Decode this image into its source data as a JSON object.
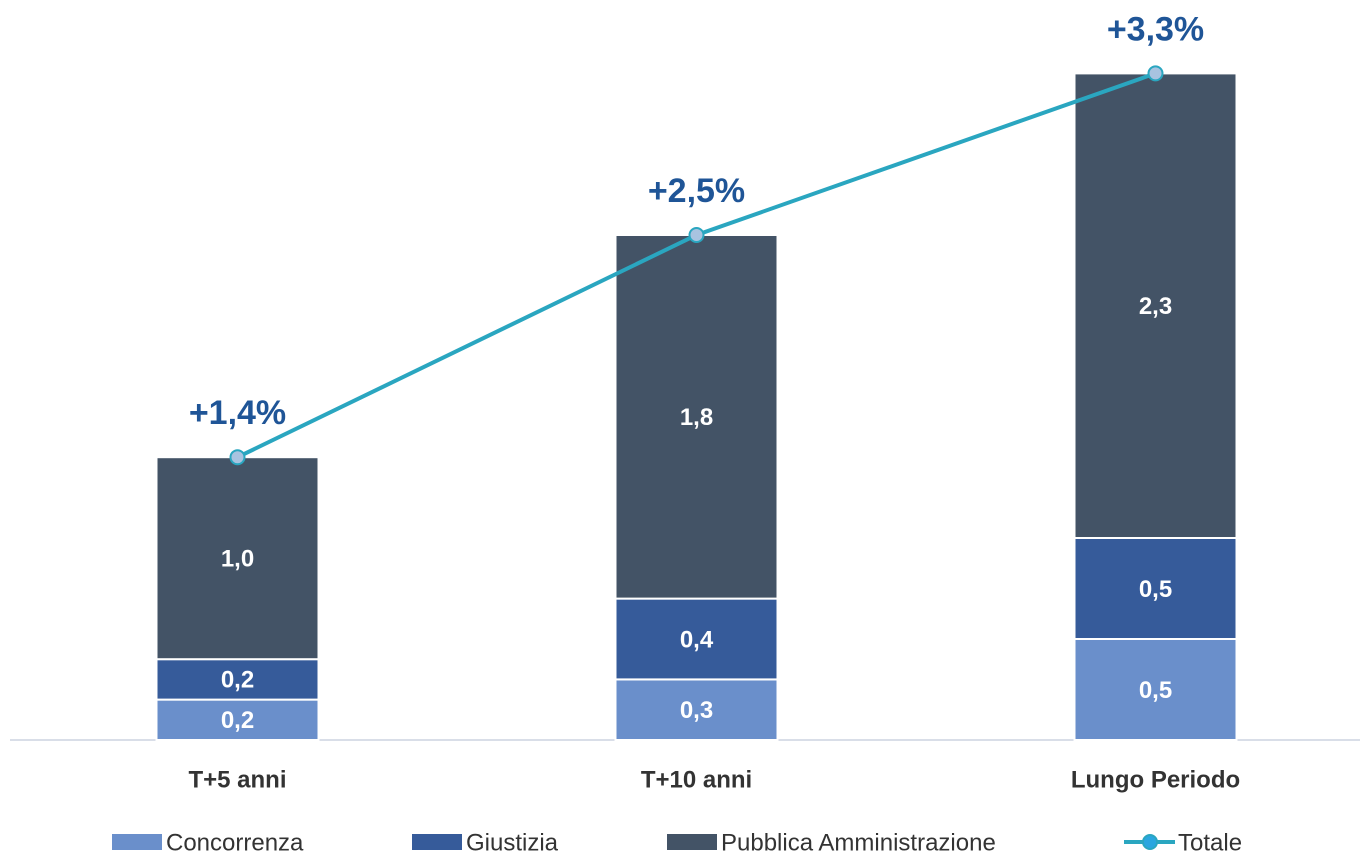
{
  "chart_data": {
    "type": "bar",
    "stacked": true,
    "categories": [
      "T+5 anni",
      "T+10 anni",
      "Lungo Periodo"
    ],
    "ylim": [
      0,
      3.5
    ],
    "series": [
      {
        "name": "Concorrenza",
        "color": "#6a8fcb",
        "values": [
          0.2,
          0.3,
          0.5
        ],
        "value_labels": [
          "0,2",
          "0,3",
          "0,5"
        ]
      },
      {
        "name": "Giustizia",
        "color": "#365b9a",
        "values": [
          0.2,
          0.4,
          0.5
        ],
        "value_labels": [
          "0,2",
          "0,4",
          "0,5"
        ]
      },
      {
        "name": "Pubblica Amministrazione",
        "color": "#435366",
        "values": [
          1.0,
          1.8,
          2.3
        ],
        "value_labels": [
          "1,0",
          "1,8",
          "2,3"
        ]
      },
      {
        "name": "Totale",
        "type": "line",
        "color": "#2aa6c0",
        "values": [
          1.4,
          2.5,
          3.3
        ],
        "value_labels": [
          "+1,4%",
          "+2,5%",
          "+3,3%"
        ]
      }
    ]
  }
}
